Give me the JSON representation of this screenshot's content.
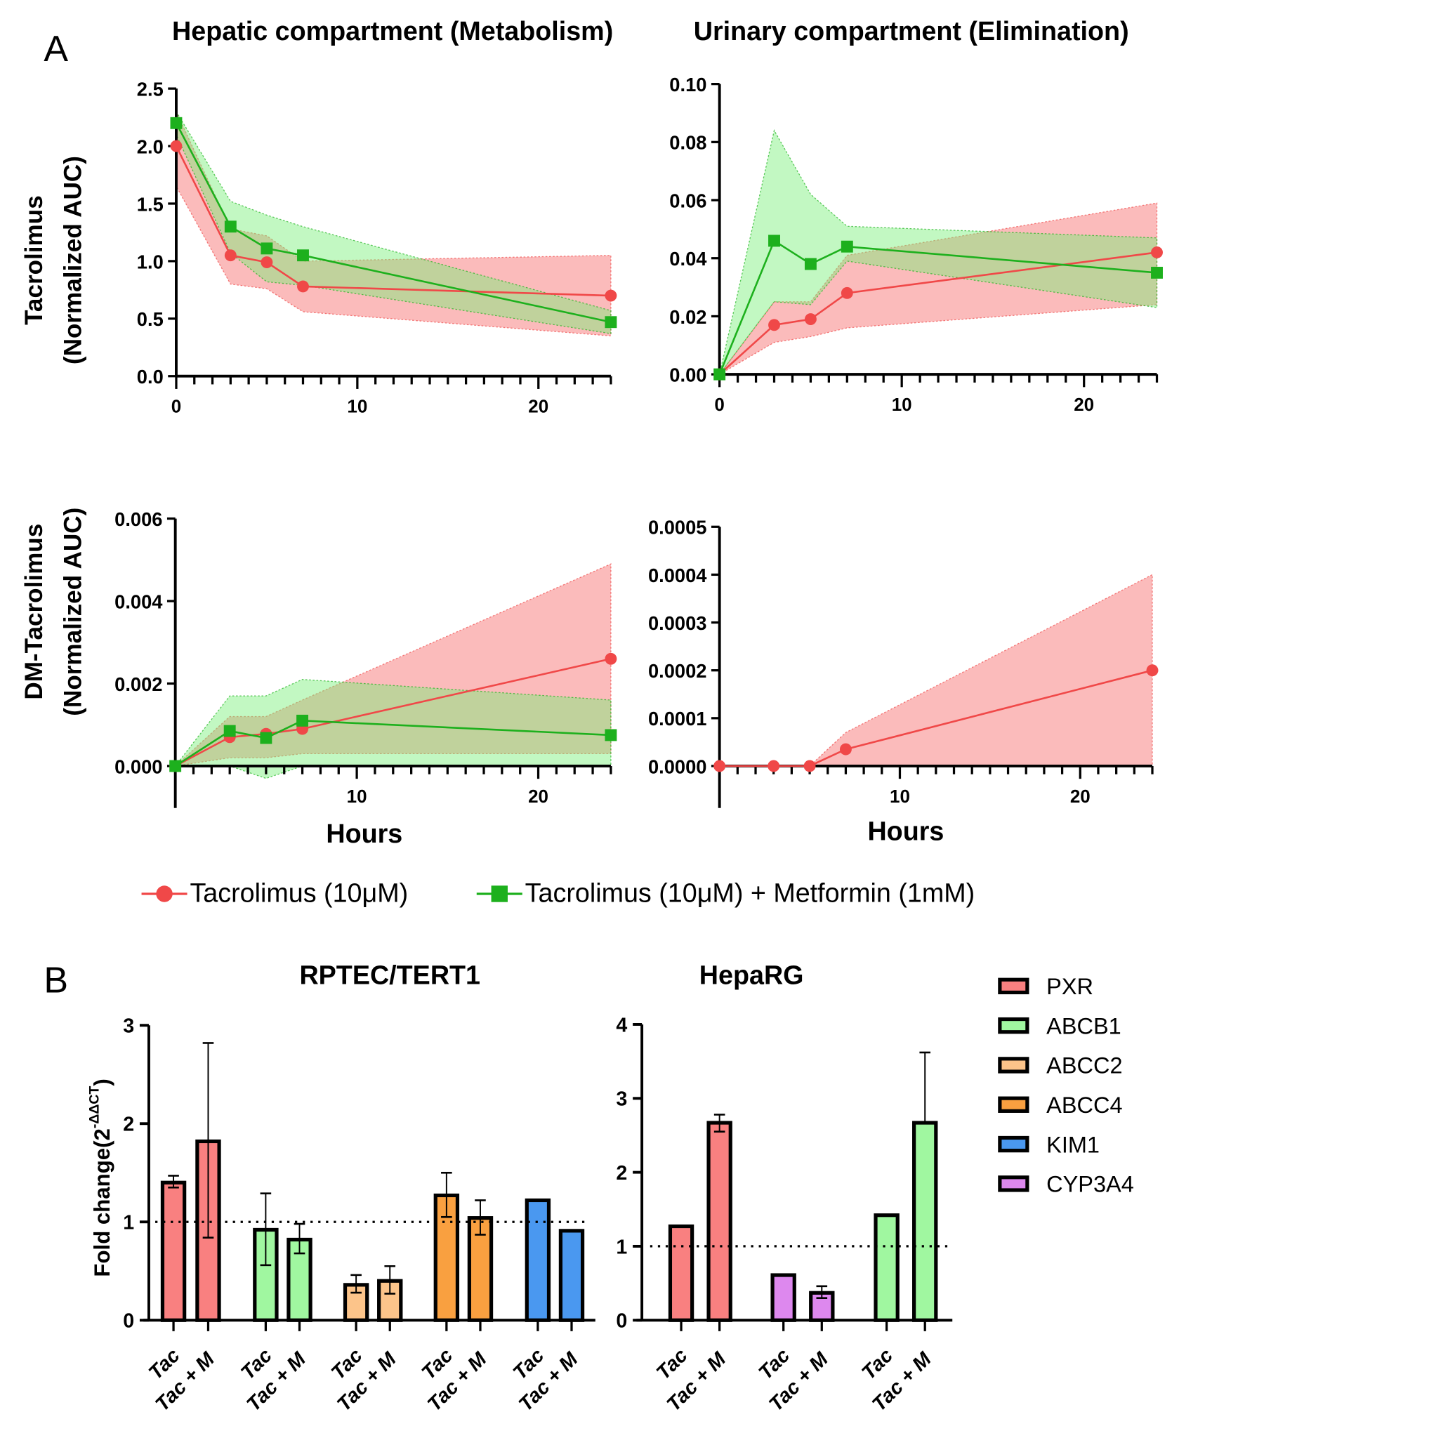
{
  "panel_labels": {
    "a": "A",
    "b": "B"
  },
  "column_titles": [
    "Hepatic compartment (Metabolism)",
    "Urinary compartment (Elimination)"
  ],
  "row_ylabels": [
    [
      "Tacrolimus",
      "(Normalized AUC)"
    ],
    [
      "DM-Tacrolimus",
      "(Normalized AUC)"
    ]
  ],
  "legend_a": [
    {
      "label": "Tacrolimus (10μM)",
      "color": "#f04848",
      "marker": "circle"
    },
    {
      "label": "Tacrolimus (10μM) + Metformin (1mM)",
      "color": "#1db01d",
      "marker": "square"
    }
  ],
  "legend_b": [
    {
      "label": "PXR",
      "color": "#f98080"
    },
    {
      "label": "ABCB1",
      "color": "#a0f7a0"
    },
    {
      "label": "ABCC2",
      "color": "#fcc48a"
    },
    {
      "label": "ABCC4",
      "color": "#f9a040"
    },
    {
      "label": "KIM1",
      "color": "#4a98f0"
    },
    {
      "label": "CYP3A4",
      "color": "#dd88ee"
    }
  ],
  "chart_data": [
    {
      "type": "line",
      "title": "Hepatic compartment (Metabolism)",
      "ylabel": "Tacrolimus (Normalized AUC)",
      "xlabel": "",
      "xlim": [
        0,
        24
      ],
      "ylim": [
        0,
        2.5
      ],
      "xticks": [
        "0",
        "10",
        "20"
      ],
      "yticks": [
        "0.0",
        "0.5",
        "1.0",
        "1.5",
        "2.0",
        "2.5"
      ],
      "x": [
        0,
        3,
        5,
        7,
        24
      ],
      "series": [
        {
          "name": "Tacrolimus (10μM)",
          "values": [
            2.0,
            1.05,
            0.99,
            0.78,
            0.7
          ],
          "lower": [
            1.65,
            0.8,
            0.76,
            0.56,
            0.35
          ],
          "upper": [
            2.3,
            1.28,
            1.22,
            1.0,
            1.05
          ]
        },
        {
          "name": "Tacrolimus (10μM) + Metformin (1mM)",
          "values": [
            2.2,
            1.3,
            1.11,
            1.05,
            0.47
          ],
          "lower": [
            2.1,
            1.07,
            0.82,
            0.79,
            0.37
          ],
          "upper": [
            2.3,
            1.52,
            1.4,
            1.3,
            0.57
          ]
        }
      ]
    },
    {
      "type": "line",
      "title": "Urinary compartment (Elimination)",
      "ylabel": "",
      "xlabel": "",
      "xlim": [
        0,
        24
      ],
      "ylim": [
        0,
        0.1
      ],
      "xticks": [
        "0",
        "10",
        "20"
      ],
      "yticks": [
        "0.00",
        "0.02",
        "0.04",
        "0.06",
        "0.08",
        "0.10"
      ],
      "x": [
        0,
        3,
        5,
        7,
        24
      ],
      "series": [
        {
          "name": "Tacrolimus (10μM)",
          "values": [
            0,
            0.017,
            0.019,
            0.028,
            0.042
          ],
          "lower": [
            0,
            0.011,
            0.013,
            0.016,
            0.024
          ],
          "upper": [
            0,
            0.025,
            0.025,
            0.041,
            0.059
          ]
        },
        {
          "name": "Tacrolimus (10μM) + Metformin (1mM)",
          "values": [
            0,
            0.046,
            0.038,
            0.044,
            0.035
          ],
          "lower": [
            0,
            0.025,
            0.024,
            0.039,
            0.023
          ],
          "upper": [
            0,
            0.084,
            0.062,
            0.051,
            0.047
          ]
        }
      ]
    },
    {
      "type": "line",
      "title": "",
      "ylabel": "DM-Tacrolimus (Normalized AUC)",
      "xlabel": "Hours",
      "xlim": [
        0,
        24
      ],
      "ylim": [
        0,
        0.006
      ],
      "xticks": [
        "10",
        "20"
      ],
      "yticks": [
        "0.000",
        "0.002",
        "0.004",
        "0.006"
      ],
      "x": [
        0,
        3,
        5,
        7,
        24
      ],
      "series": [
        {
          "name": "Tacrolimus (10μM)",
          "values": [
            0,
            0.0007,
            0.00078,
            0.0009,
            0.0026
          ],
          "lower": [
            0,
            0.0002,
            0.0002,
            0.0003,
            0.0003
          ],
          "upper": [
            0,
            0.0012,
            0.0012,
            0.0016,
            0.0049
          ]
        },
        {
          "name": "Tacrolimus (10μM) + Metformin (1mM)",
          "values": [
            0,
            0.00085,
            0.00068,
            0.0011,
            0.00075
          ],
          "lower": [
            0,
            0,
            -0.0003,
            0,
            0
          ],
          "upper": [
            0,
            0.0017,
            0.0017,
            0.0021,
            0.0016
          ]
        }
      ]
    },
    {
      "type": "line",
      "title": "",
      "ylabel": "",
      "xlabel": "Hours",
      "xlim": [
        0,
        24
      ],
      "ylim": [
        0,
        0.0005
      ],
      "xticks": [
        "10",
        "20"
      ],
      "yticks": [
        "0.0000",
        "0.0001",
        "0.0002",
        "0.0003",
        "0.0004",
        "0.0005"
      ],
      "x": [
        0,
        3,
        5,
        7,
        24
      ],
      "series": [
        {
          "name": "Tacrolimus (10μM)",
          "values": [
            0,
            0,
            0,
            3.5e-05,
            0.0002
          ],
          "lower": [
            0,
            0,
            0,
            0,
            0
          ],
          "upper": [
            0,
            0,
            0,
            7e-05,
            0.0004
          ]
        }
      ]
    },
    {
      "type": "bar",
      "title": "RPTEC/TERT1",
      "ylabel": "Fold change(2",
      "ylabel_sup": "-ΔΔCT",
      "ylabel_end": ")",
      "ylim": [
        0,
        3
      ],
      "yticks": [
        "0",
        "1",
        "2",
        "3"
      ],
      "reference_line": 1,
      "groups": [
        {
          "gene": "PXR",
          "bars": [
            {
              "label": "Tac",
              "value": 1.4,
              "err": [
                1.35,
                1.47
              ]
            },
            {
              "label": "Tac + M",
              "value": 1.82,
              "err": [
                0.84,
                2.82
              ]
            }
          ]
        },
        {
          "gene": "ABCB1",
          "bars": [
            {
              "label": "Tac",
              "value": 0.92,
              "err": [
                0.56,
                1.29
              ]
            },
            {
              "label": "Tac + M",
              "value": 0.82,
              "err": [
                0.68,
                0.98
              ]
            }
          ]
        },
        {
          "gene": "ABCC2",
          "bars": [
            {
              "label": "Tac",
              "value": 0.36,
              "err": [
                0.28,
                0.46
              ]
            },
            {
              "label": "Tac + M",
              "value": 0.4,
              "err": [
                0.27,
                0.55
              ]
            }
          ]
        },
        {
          "gene": "ABCC4",
          "bars": [
            {
              "label": "Tac",
              "value": 1.27,
              "err": [
                1.05,
                1.5
              ]
            },
            {
              "label": "Tac + M",
              "value": 1.04,
              "err": [
                0.87,
                1.22
              ]
            }
          ]
        },
        {
          "gene": "KIM1",
          "bars": [
            {
              "label": "Tac",
              "value": 1.22,
              "err": null
            },
            {
              "label": "Tac + M",
              "value": 0.91,
              "err": null
            }
          ]
        }
      ]
    },
    {
      "type": "bar",
      "title": "HepaRG",
      "ylabel": "",
      "ylim": [
        0,
        4
      ],
      "yticks": [
        "0",
        "1",
        "2",
        "3",
        "4"
      ],
      "reference_line": 1,
      "groups": [
        {
          "gene": "PXR",
          "bars": [
            {
              "label": "Tac",
              "value": 1.27,
              "err": null
            },
            {
              "label": "Tac + M",
              "value": 2.67,
              "err": [
                2.55,
                2.78
              ]
            }
          ]
        },
        {
          "gene": "CYP3A4",
          "bars": [
            {
              "label": "Tac",
              "value": 0.61,
              "err": null
            },
            {
              "label": "Tac + M",
              "value": 0.37,
              "err": [
                0.3,
                0.46
              ]
            }
          ]
        },
        {
          "gene": "ABCB1",
          "bars": [
            {
              "label": "Tac",
              "value": 1.42,
              "err": null
            },
            {
              "label": "Tac + M",
              "value": 2.67,
              "err": [
                2.67,
                3.62
              ]
            }
          ]
        }
      ]
    }
  ]
}
